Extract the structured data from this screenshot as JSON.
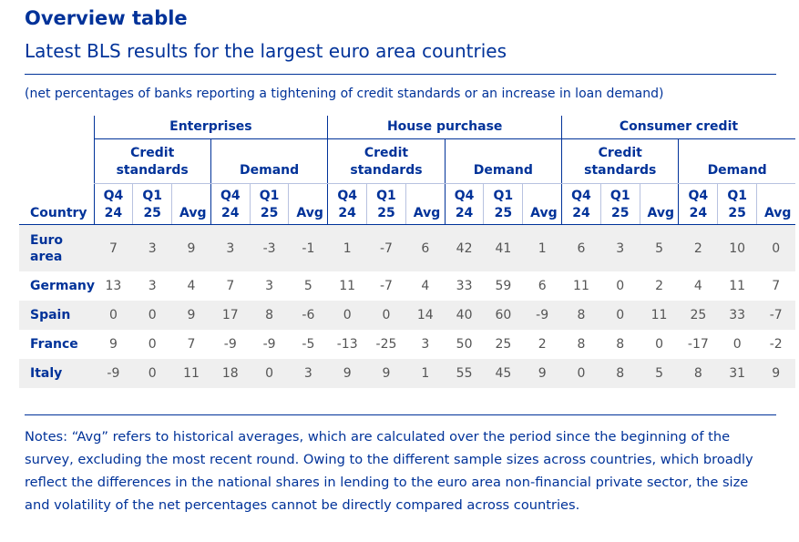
{
  "header": {
    "title": "Overview table",
    "subtitle": "Latest BLS results for the largest euro area countries",
    "note": "(net percentages of banks reporting a tightening of credit standards or an increase in loan demand)"
  },
  "table": {
    "country_header": "Country",
    "groups": [
      {
        "name": "Enterprises",
        "subgroups": [
          {
            "name": "Credit standards",
            "columns": [
              "Q4 24",
              "Q1 25",
              "Avg"
            ]
          },
          {
            "name": "Demand",
            "columns": [
              "Q4 24",
              "Q1 25",
              "Avg"
            ]
          }
        ]
      },
      {
        "name": "House purchase",
        "subgroups": [
          {
            "name": "Credit standards",
            "columns": [
              "Q4 24",
              "Q1 25",
              "Avg"
            ]
          },
          {
            "name": "Demand",
            "columns": [
              "Q4 24",
              "Q1 25",
              "Avg"
            ]
          }
        ]
      },
      {
        "name": "Consumer credit",
        "subgroups": [
          {
            "name": "Credit standards",
            "columns": [
              "Q4 24",
              "Q1 25",
              "Avg"
            ]
          },
          {
            "name": "Demand",
            "columns": [
              "Q4 24",
              "Q1 25",
              "Avg"
            ]
          }
        ]
      }
    ],
    "rows": [
      {
        "country": "Euro area",
        "values": [
          7,
          3,
          9,
          3,
          -3,
          -1,
          1,
          -7,
          6,
          42,
          41,
          1,
          6,
          3,
          5,
          2,
          10,
          0
        ]
      },
      {
        "country": "Germany",
        "values": [
          13,
          3,
          4,
          7,
          3,
          5,
          11,
          -7,
          4,
          33,
          59,
          6,
          11,
          0,
          2,
          4,
          11,
          7
        ]
      },
      {
        "country": "Spain",
        "values": [
          0,
          0,
          9,
          17,
          8,
          -6,
          0,
          0,
          14,
          40,
          60,
          -9,
          8,
          0,
          11,
          25,
          33,
          -7
        ]
      },
      {
        "country": "France",
        "values": [
          9,
          0,
          7,
          -9,
          -9,
          -5,
          -13,
          -25,
          3,
          50,
          25,
          2,
          8,
          8,
          0,
          -17,
          0,
          -2
        ]
      },
      {
        "country": "Italy",
        "values": [
          -9,
          0,
          11,
          18,
          0,
          3,
          9,
          9,
          1,
          55,
          45,
          9,
          0,
          8,
          5,
          8,
          31,
          9
        ]
      }
    ]
  },
  "notes": "Notes: “Avg” refers to historical averages, which are calculated over the period since the beginning of the survey, excluding the most recent round. Owing to the different sample sizes across countries, which broadly reflect the differences in the national shares in lending to the euro area non-financial private sector, the size and volatility of the net percentages cannot be directly compared across countries."
}
